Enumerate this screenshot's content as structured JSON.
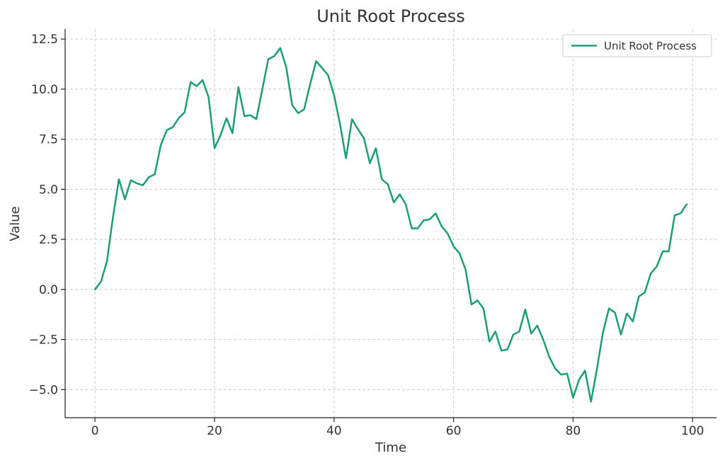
{
  "chart_data": {
    "type": "line",
    "title": "Unit Root Process",
    "xlabel": "Time",
    "ylabel": "Value",
    "xlim": [
      -5,
      104
    ],
    "ylim": [
      -6.4,
      13.0
    ],
    "xticks": [
      0,
      20,
      40,
      60,
      80,
      100
    ],
    "xtick_labels": [
      "0",
      "20",
      "40",
      "60",
      "80",
      "100"
    ],
    "yticks": [
      -5.0,
      -2.5,
      0.0,
      2.5,
      5.0,
      7.5,
      10.0,
      12.5
    ],
    "ytick_labels": [
      "−5.0",
      "−2.5",
      "0.0",
      "2.5",
      "5.0",
      "7.5",
      "10.0",
      "12.5"
    ],
    "grid": true,
    "legend_position": "top-right",
    "series": [
      {
        "name": "Unit Root Process",
        "color": "#1a9e77",
        "x": [
          0,
          1,
          2,
          3,
          4,
          5,
          6,
          7,
          8,
          9,
          10,
          11,
          12,
          13,
          14,
          15,
          16,
          17,
          18,
          19,
          20,
          21,
          22,
          23,
          24,
          25,
          26,
          27,
          28,
          29,
          30,
          31,
          32,
          33,
          34,
          35,
          36,
          37,
          38,
          39,
          40,
          41,
          42,
          43,
          44,
          45,
          46,
          47,
          48,
          49,
          50,
          51,
          52,
          53,
          54,
          55,
          56,
          57,
          58,
          59,
          60,
          61,
          62,
          63,
          64,
          65,
          66,
          67,
          68,
          69,
          70,
          71,
          72,
          73,
          74,
          75,
          76,
          77,
          78,
          79,
          80,
          81,
          82,
          83,
          84,
          85,
          86,
          87,
          88,
          89,
          90,
          91,
          92,
          93,
          94,
          95,
          96,
          97,
          98,
          99
        ],
        "values": [
          0.0,
          0.4,
          1.4,
          3.6,
          5.5,
          4.5,
          5.45,
          5.3,
          5.2,
          5.6,
          5.75,
          7.2,
          7.95,
          8.1,
          8.55,
          8.85,
          10.35,
          10.15,
          10.45,
          9.6,
          7.05,
          7.7,
          8.55,
          7.8,
          10.1,
          8.65,
          8.7,
          8.5,
          10.0,
          11.5,
          11.65,
          12.05,
          11.1,
          9.2,
          8.8,
          9.0,
          10.25,
          11.4,
          11.05,
          10.7,
          9.7,
          8.25,
          6.55,
          8.5,
          8.0,
          7.55,
          6.3,
          7.05,
          5.5,
          5.25,
          4.35,
          4.75,
          4.25,
          3.05,
          3.05,
          3.45,
          3.5,
          3.8,
          3.15,
          2.8,
          2.15,
          1.8,
          1.0,
          -0.75,
          -0.55,
          -0.95,
          -2.6,
          -2.1,
          -3.05,
          -3.0,
          -2.25,
          -2.1,
          -1.0,
          -2.2,
          -1.8,
          -2.5,
          -3.35,
          -3.95,
          -4.25,
          -4.2,
          -5.4,
          -4.5,
          -4.05,
          -5.6,
          -3.95,
          -2.15,
          -0.95,
          -1.15,
          -2.25,
          -1.2,
          -1.6,
          -0.35,
          -0.15,
          0.8,
          1.15,
          1.9,
          1.9,
          3.7,
          3.8,
          4.25
        ]
      }
    ]
  }
}
